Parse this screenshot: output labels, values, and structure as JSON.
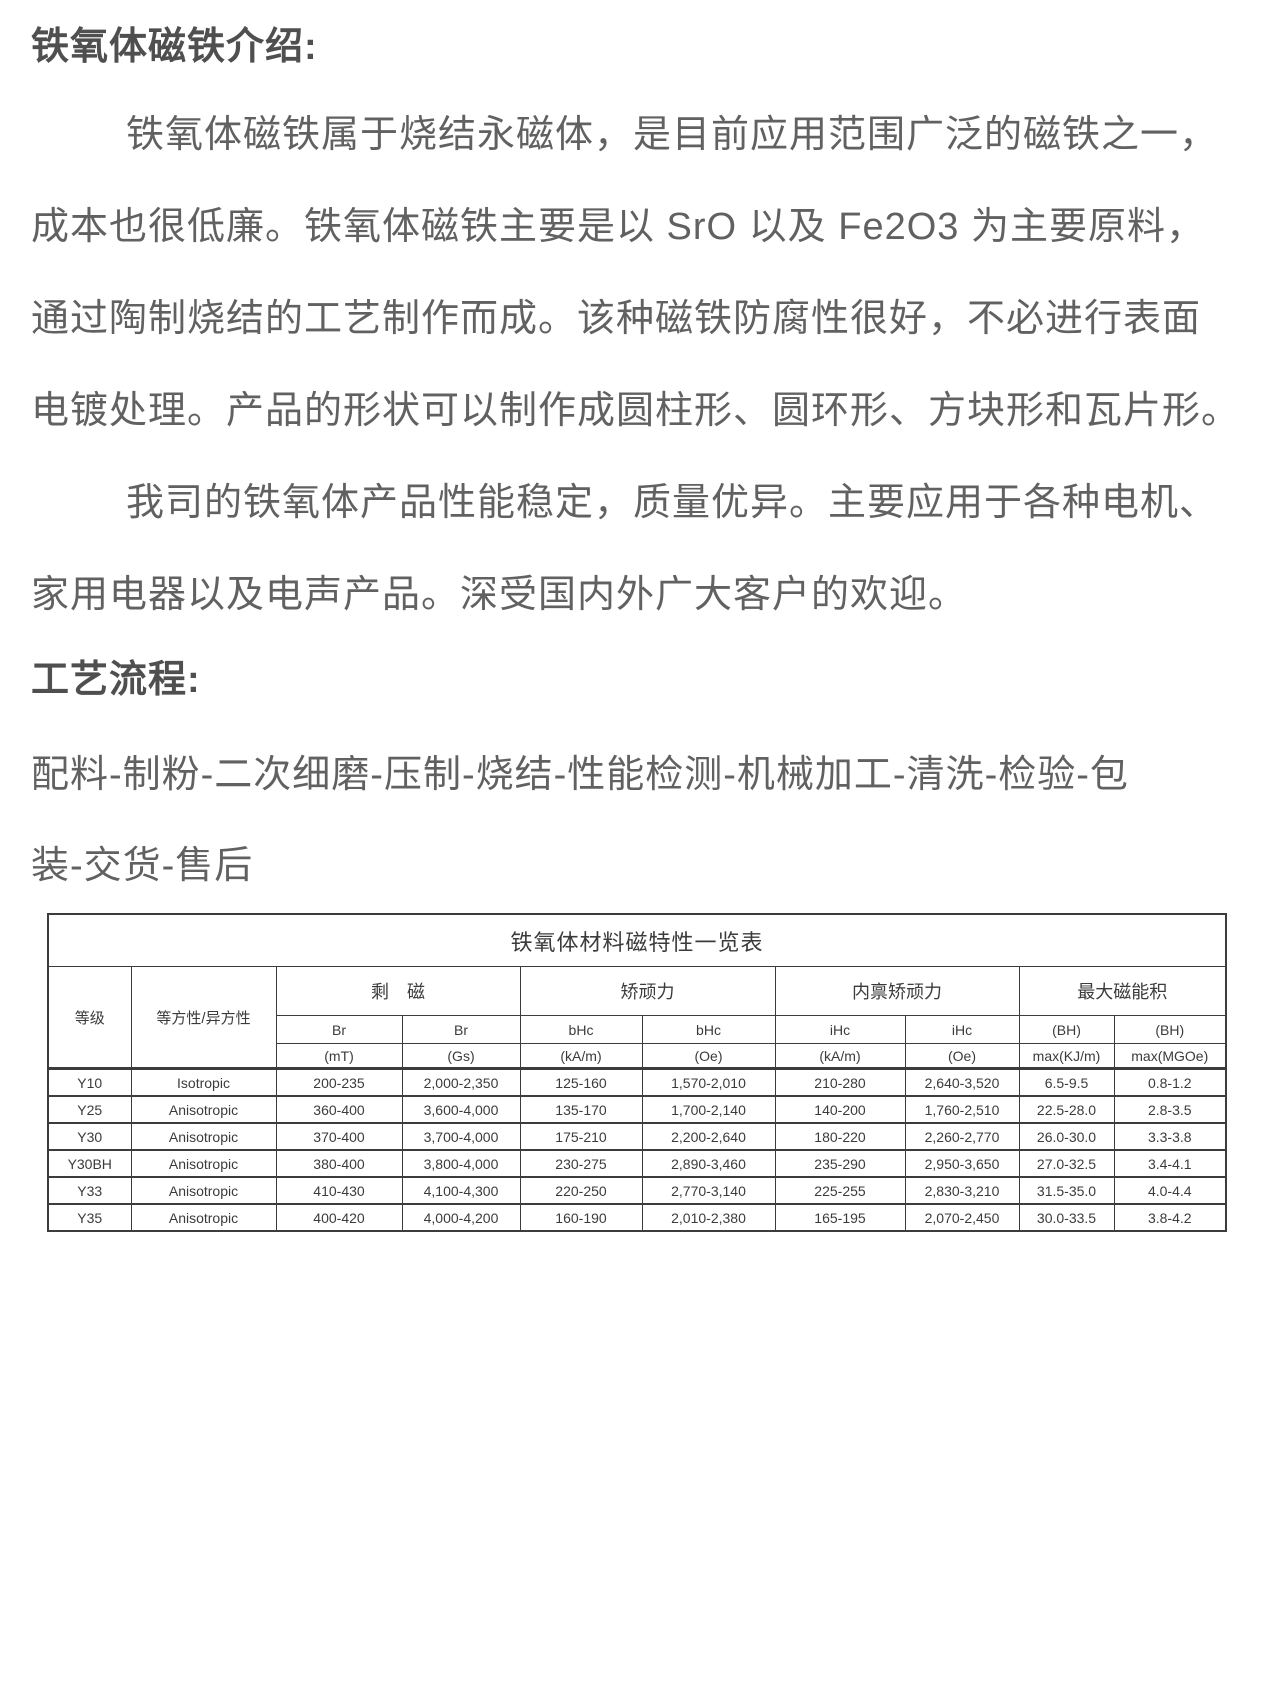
{
  "intro": {
    "heading": "铁氧体磁铁介绍:",
    "lines": [
      {
        "text": "铁氧体磁铁属于烧结永磁体，是目前应用范围广泛的磁铁之一，",
        "indent": true
      },
      {
        "text": "成本也很低廉。铁氧体磁铁主要是以 SrO 以及 Fe2O3 为主要原料，",
        "indent": false
      },
      {
        "text": "通过陶制烧结的工艺制作而成。该种磁铁防腐性很好，不必进行表面",
        "indent": false
      },
      {
        "text": "电镀处理。产品的形状可以制作成圆柱形、圆环形、方块形和瓦片形。",
        "indent": false
      },
      {
        "text": "我司的铁氧体产品性能稳定，质量优异。主要应用于各种电机、",
        "indent": true
      },
      {
        "text": "家用电器以及电声产品。深受国内外广大客户的欢迎。",
        "indent": false
      }
    ]
  },
  "process": {
    "heading": "工艺流程:",
    "lines": [
      "配料-制粉-二次细磨-压制-烧结-性能检测-机械加工-清洗-检验-包",
      "装-交货-售后"
    ]
  },
  "table": {
    "title": "铁氧体材料磁特性一览表",
    "headers": {
      "grade": "等级",
      "isotropy": "等方性/异方性",
      "groups": [
        "剩　磁",
        "矫顽力",
        "内禀矫顽力",
        "最大磁能积"
      ],
      "sub": [
        "Br",
        "Br",
        "bHc",
        "bHc",
        "iHc",
        "iHc",
        "(BH)",
        "(BH)"
      ],
      "units": [
        "(mT)",
        "(Gs)",
        "(kA/m)",
        "(Oe)",
        "(kA/m)",
        "(Oe)",
        "max(KJ/m)",
        "max(MGOe)"
      ]
    },
    "rows": [
      [
        "Y10",
        "Isotropic",
        "200-235",
        "2,000-2,350",
        "125-160",
        "1,570-2,010",
        "210-280",
        "2,640-3,520",
        "6.5-9.5",
        "0.8-1.2"
      ],
      [
        "Y25",
        "Anisotropic",
        "360-400",
        "3,600-4,000",
        "135-170",
        "1,700-2,140",
        "140-200",
        "1,760-2,510",
        "22.5-28.0",
        "2.8-3.5"
      ],
      [
        "Y30",
        "Anisotropic",
        "370-400",
        "3,700-4,000",
        "175-210",
        "2,200-2,640",
        "180-220",
        "2,260-2,770",
        "26.0-30.0",
        "3.3-3.8"
      ],
      [
        "Y30BH",
        "Anisotropic",
        "380-400",
        "3,800-4,000",
        "230-275",
        "2,890-3,460",
        "235-290",
        "2,950-3,650",
        "27.0-32.5",
        "3.4-4.1"
      ],
      [
        "Y33",
        "Anisotropic",
        "410-430",
        "4,100-4,300",
        "220-250",
        "2,770-3,140",
        "225-255",
        "2,830-3,210",
        "31.5-35.0",
        "4.0-4.4"
      ],
      [
        "Y35",
        "Anisotropic",
        "400-420",
        "4,000-4,200",
        "160-190",
        "2,010-2,380",
        "165-195",
        "2,070-2,450",
        "30.0-33.5",
        "3.8-4.2"
      ]
    ]
  },
  "colors": {
    "body_text": "#616161",
    "heading_text": "#4f4f4f",
    "table_text": "#3b3b3b",
    "table_border": "#3c3c3c",
    "background": "#ffffff"
  }
}
